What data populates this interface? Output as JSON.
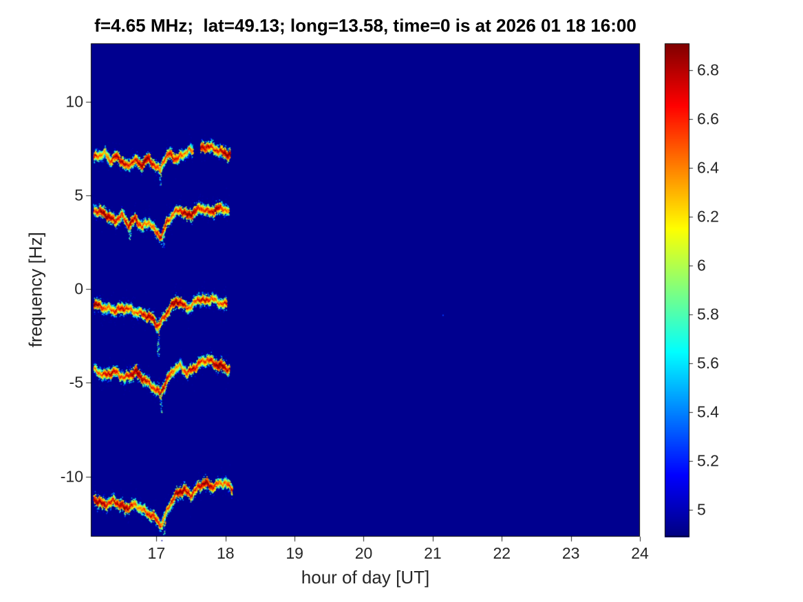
{
  "chart_data": {
    "type": "heatmap",
    "subtype": "doppler-spectrogram",
    "title": "f=4.65 MHz;  lat=49.13; long=13.58, time=0 is at 2026 01 18 16:00",
    "xlabel": "hour of day [UT]",
    "ylabel": "frequency [Hz]",
    "xlim": [
      16.05,
      24.0
    ],
    "ylim": [
      -13.2,
      13.1
    ],
    "x_ticks": [
      {
        "v": 17,
        "label": "17"
      },
      {
        "v": 18,
        "label": "18"
      },
      {
        "v": 19,
        "label": "19"
      },
      {
        "v": 20,
        "label": "20"
      },
      {
        "v": 21,
        "label": "21"
      },
      {
        "v": 22,
        "label": "22"
      },
      {
        "v": 23,
        "label": "23"
      },
      {
        "v": 24,
        "label": "24"
      }
    ],
    "y_ticks": [
      {
        "v": 10,
        "label": "10"
      },
      {
        "v": 5,
        "label": "5"
      },
      {
        "v": 0,
        "label": "0"
      },
      {
        "v": -5,
        "label": "-5"
      },
      {
        "v": -10,
        "label": "-10"
      }
    ],
    "colormap": "jet",
    "background_color": "#00008F",
    "axis_color": "#262626",
    "colorbar": {
      "min": 4.89,
      "max": 6.91,
      "ticks": [
        {
          "v": 6.8,
          "label": "6.8"
        },
        {
          "v": 6.6,
          "label": "6.6"
        },
        {
          "v": 6.4,
          "label": "6.4"
        },
        {
          "v": 6.2,
          "label": "6.2"
        },
        {
          "v": 6.0,
          "label": "6"
        },
        {
          "v": 5.8,
          "label": "5.8"
        },
        {
          "v": 5.6,
          "label": "5.6"
        },
        {
          "v": 5.4,
          "label": "5.4"
        },
        {
          "v": 5.2,
          "label": "5.2"
        },
        {
          "v": 5.0,
          "label": "5"
        }
      ]
    },
    "traces": [
      {
        "name": "trace-plus7hz",
        "points": [
          [
            16.1,
            7.0
          ],
          [
            16.18,
            7.15
          ],
          [
            16.26,
            7.25
          ],
          [
            16.33,
            6.85
          ],
          [
            16.42,
            7.05
          ],
          [
            16.5,
            6.85
          ],
          [
            16.58,
            6.5
          ],
          [
            16.68,
            6.9
          ],
          [
            16.78,
            6.6
          ],
          [
            16.88,
            6.95
          ],
          [
            16.98,
            6.6
          ],
          [
            17.05,
            6.3
          ],
          [
            17.12,
            6.95
          ],
          [
            17.2,
            7.2
          ],
          [
            17.3,
            6.9
          ],
          [
            17.38,
            7.15
          ],
          [
            17.47,
            7.4
          ],
          [
            17.52,
            7.35
          ],
          [
            17.65,
            7.5
          ],
          [
            17.75,
            7.6
          ],
          [
            17.85,
            7.45
          ],
          [
            17.95,
            7.3
          ],
          [
            18.07,
            7.15
          ]
        ],
        "gaps": [
          [
            17.53,
            17.64
          ]
        ],
        "streaks": [
          {
            "x": 17.06,
            "from": 6.2,
            "to": 5.5
          }
        ]
      },
      {
        "name": "trace-plus4hz",
        "points": [
          [
            16.1,
            4.2
          ],
          [
            16.2,
            4.1
          ],
          [
            16.3,
            3.9
          ],
          [
            16.4,
            3.6
          ],
          [
            16.5,
            3.95
          ],
          [
            16.6,
            3.4
          ],
          [
            16.7,
            3.75
          ],
          [
            16.8,
            3.3
          ],
          [
            16.9,
            3.6
          ],
          [
            17.0,
            3.0
          ],
          [
            17.08,
            2.8
          ],
          [
            17.16,
            3.6
          ],
          [
            17.25,
            4.0
          ],
          [
            17.35,
            4.25
          ],
          [
            17.45,
            3.9
          ],
          [
            17.55,
            4.1
          ],
          [
            17.65,
            4.35
          ],
          [
            17.75,
            4.1
          ],
          [
            17.85,
            4.2
          ],
          [
            17.95,
            4.35
          ],
          [
            18.05,
            4.1
          ]
        ],
        "gaps": [],
        "streaks": [
          {
            "x": 16.62,
            "from": 3.2,
            "to": 2.6
          },
          {
            "x": 17.1,
            "from": 2.8,
            "to": 2.2
          }
        ]
      },
      {
        "name": "trace-minus1hz",
        "points": [
          [
            16.1,
            -0.8
          ],
          [
            16.25,
            -1.0
          ],
          [
            16.4,
            -1.15
          ],
          [
            16.55,
            -1.0
          ],
          [
            16.7,
            -1.2
          ],
          [
            16.85,
            -1.4
          ],
          [
            16.95,
            -1.6
          ],
          [
            17.03,
            -2.0
          ],
          [
            17.1,
            -1.6
          ],
          [
            17.2,
            -1.0
          ],
          [
            17.3,
            -0.6
          ],
          [
            17.4,
            -0.9
          ],
          [
            17.5,
            -1.0
          ],
          [
            17.6,
            -0.5
          ],
          [
            17.7,
            -0.65
          ],
          [
            17.8,
            -0.5
          ],
          [
            17.9,
            -0.7
          ],
          [
            18.02,
            -0.85
          ]
        ],
        "gaps": [],
        "streaks": [
          {
            "x": 17.03,
            "from": -2.1,
            "to": -3.6
          }
        ]
      },
      {
        "name": "trace-minus4p5hz",
        "points": [
          [
            16.1,
            -4.3
          ],
          [
            16.25,
            -4.6
          ],
          [
            16.4,
            -4.4
          ],
          [
            16.55,
            -4.75
          ],
          [
            16.7,
            -4.4
          ],
          [
            16.85,
            -4.9
          ],
          [
            16.95,
            -5.2
          ],
          [
            17.06,
            -5.6
          ],
          [
            17.15,
            -4.9
          ],
          [
            17.25,
            -4.3
          ],
          [
            17.35,
            -4.1
          ],
          [
            17.45,
            -4.5
          ],
          [
            17.55,
            -4.2
          ],
          [
            17.65,
            -3.9
          ],
          [
            17.75,
            -3.75
          ],
          [
            17.85,
            -4.0
          ],
          [
            17.95,
            -4.1
          ],
          [
            18.06,
            -4.3
          ]
        ],
        "gaps": [],
        "streaks": [
          {
            "x": 17.07,
            "from": -5.6,
            "to": -6.6
          }
        ]
      },
      {
        "name": "trace-minus11hz",
        "points": [
          [
            16.1,
            -11.2
          ],
          [
            16.25,
            -11.5
          ],
          [
            16.4,
            -11.3
          ],
          [
            16.55,
            -11.7
          ],
          [
            16.7,
            -11.5
          ],
          [
            16.85,
            -11.9
          ],
          [
            16.95,
            -12.1
          ],
          [
            17.08,
            -12.6
          ],
          [
            17.18,
            -11.6
          ],
          [
            17.3,
            -10.9
          ],
          [
            17.4,
            -10.7
          ],
          [
            17.5,
            -11.0
          ],
          [
            17.6,
            -10.6
          ],
          [
            17.7,
            -10.3
          ],
          [
            17.8,
            -10.55
          ],
          [
            17.9,
            -10.4
          ],
          [
            18.0,
            -10.3
          ],
          [
            18.1,
            -10.7
          ]
        ],
        "gaps": [],
        "streaks": [
          {
            "x": 17.12,
            "from": -12.4,
            "to": -13.1
          }
        ]
      }
    ],
    "noise_specks": [
      [
        21.15,
        -1.4
      ]
    ]
  }
}
